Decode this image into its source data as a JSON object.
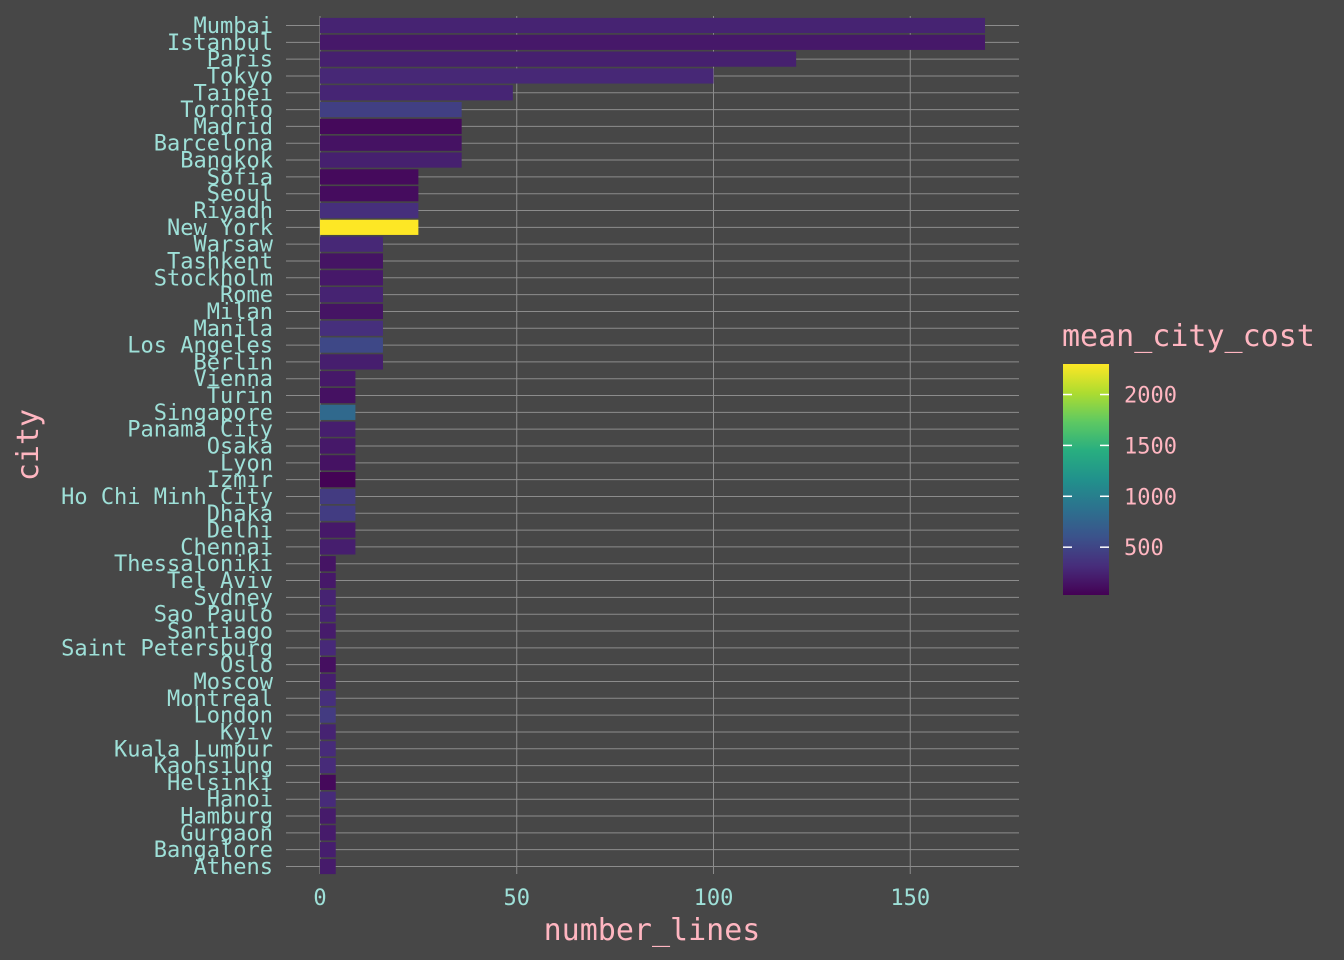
{
  "chart_data": {
    "type": "bar",
    "orientation": "horizontal",
    "xlabel": "number_lines",
    "ylabel": "city",
    "xlim": [
      0,
      178
    ],
    "x_ticks": [
      0,
      50,
      100,
      150
    ],
    "grid": true,
    "legend": {
      "title": "mean_city_cost",
      "placement": "right",
      "ticks": [
        500,
        1000,
        1500,
        2000
      ],
      "range": [
        30,
        2300
      ]
    },
    "categories": [
      "Mumbai",
      "Istanbul",
      "Paris",
      "Tokyo",
      "Taipei",
      "Toronto",
      "Madrid",
      "Barcelona",
      "Bangkok",
      "Sofia",
      "Seoul",
      "Riyadh",
      "New York",
      "Warsaw",
      "Tashkent",
      "Stockholm",
      "Rome",
      "Milan",
      "Manila",
      "Los Angeles",
      "Berlin",
      "Vienna",
      "Turin",
      "Singapore",
      "Panama City",
      "Osaka",
      "Lyon",
      "Izmir",
      "Ho Chi Minh City",
      "Dhaka",
      "Delhi",
      "Chennai",
      "Thessaloniki",
      "Tel Aviv",
      "Sydney",
      "Sao Paulo",
      "Santiago",
      "Saint Petersburg",
      "Oslo",
      "Moscow",
      "Montreal",
      "London",
      "Kyiv",
      "Kuala Lumpur",
      "Kaohsiung",
      "Helsinki",
      "Hanoi",
      "Hamburg",
      "Gurgaon",
      "Bangalore",
      "Athens"
    ],
    "values": [
      169,
      169,
      121,
      100,
      49,
      36,
      36,
      36,
      36,
      25,
      25,
      25,
      25,
      16,
      16,
      16,
      16,
      16,
      16,
      16,
      16,
      9,
      9,
      9,
      9,
      9,
      9,
      9,
      9,
      9,
      9,
      9,
      4,
      4,
      4,
      4,
      4,
      4,
      4,
      4,
      4,
      4,
      4,
      4,
      4,
      4,
      4,
      4,
      4,
      4,
      4
    ],
    "color_values": [
      250,
      180,
      230,
      280,
      260,
      450,
      80,
      140,
      230,
      90,
      100,
      330,
      2300,
      280,
      150,
      180,
      250,
      150,
      330,
      520,
      220,
      180,
      130,
      800,
      220,
      180,
      140,
      40,
      420,
      430,
      180,
      220,
      150,
      180,
      250,
      250,
      200,
      290,
      120,
      220,
      330,
      420,
      250,
      300,
      300,
      80,
      300,
      200,
      200,
      220,
      200
    ]
  },
  "colors": {
    "background": "#474747",
    "grid": "#8c8c8c",
    "tick_text": "#9ee0d8",
    "title_text": "#ffb6c1"
  }
}
